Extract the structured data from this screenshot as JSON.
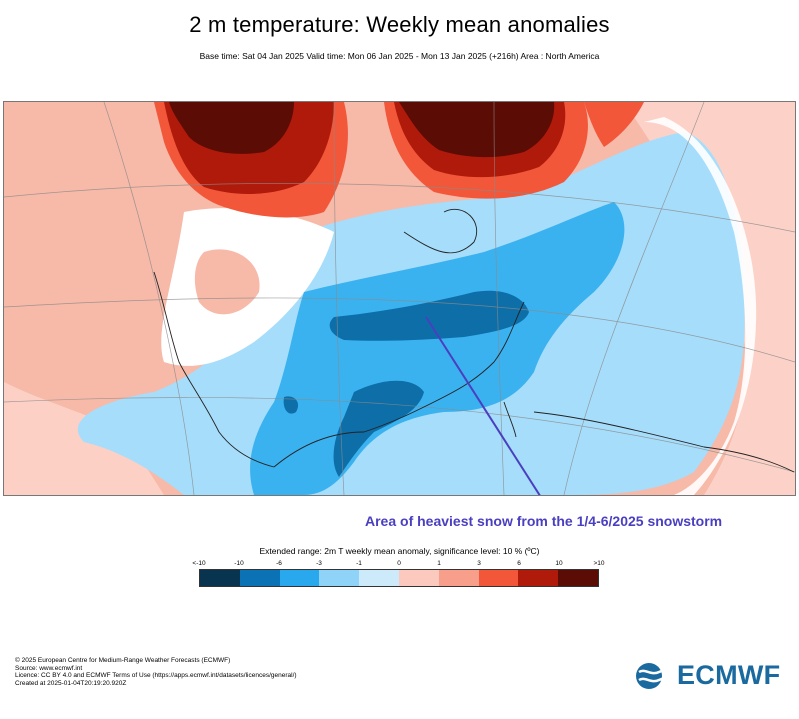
{
  "title": "2 m temperature: Weekly mean anomalies",
  "subtitle": "Base time: Sat 04 Jan 2025 Valid time: Mon 06 Jan 2025 - Mon 13 Jan 2025 (+216h) Area : North America",
  "annotation": "Area of heaviest snow from the 1/4-6/2025 snowstorm",
  "legend": {
    "title": "Extended range: 2m T weekly mean anomaly, significance level: 10 % (ºC)",
    "ticks": [
      "<-10",
      "-10",
      "-6",
      "-3",
      "-1",
      "0",
      "1",
      "3",
      "6",
      "10",
      ">10"
    ],
    "colors": [
      "#08344f",
      "#0b72b5",
      "#2aa8ee",
      "#8fd4f8",
      "#cdeafb",
      "#fcc9bf",
      "#f79f8a",
      "#f2573a",
      "#b01a0a",
      "#5b0c04"
    ]
  },
  "footer": [
    "© 2025 European Centre for Medium-Range Weather Forecasts (ECMWF)",
    "Source: www.ecmwf.int",
    "Licence: CC BY 4.0 and ECMWF Terms of Use (https://apps.ecmwf.int/datasets/licences/general/)",
    "Created at 2025-01-04T20:19:20.920Z"
  ],
  "logo_text": "ECMWF"
}
